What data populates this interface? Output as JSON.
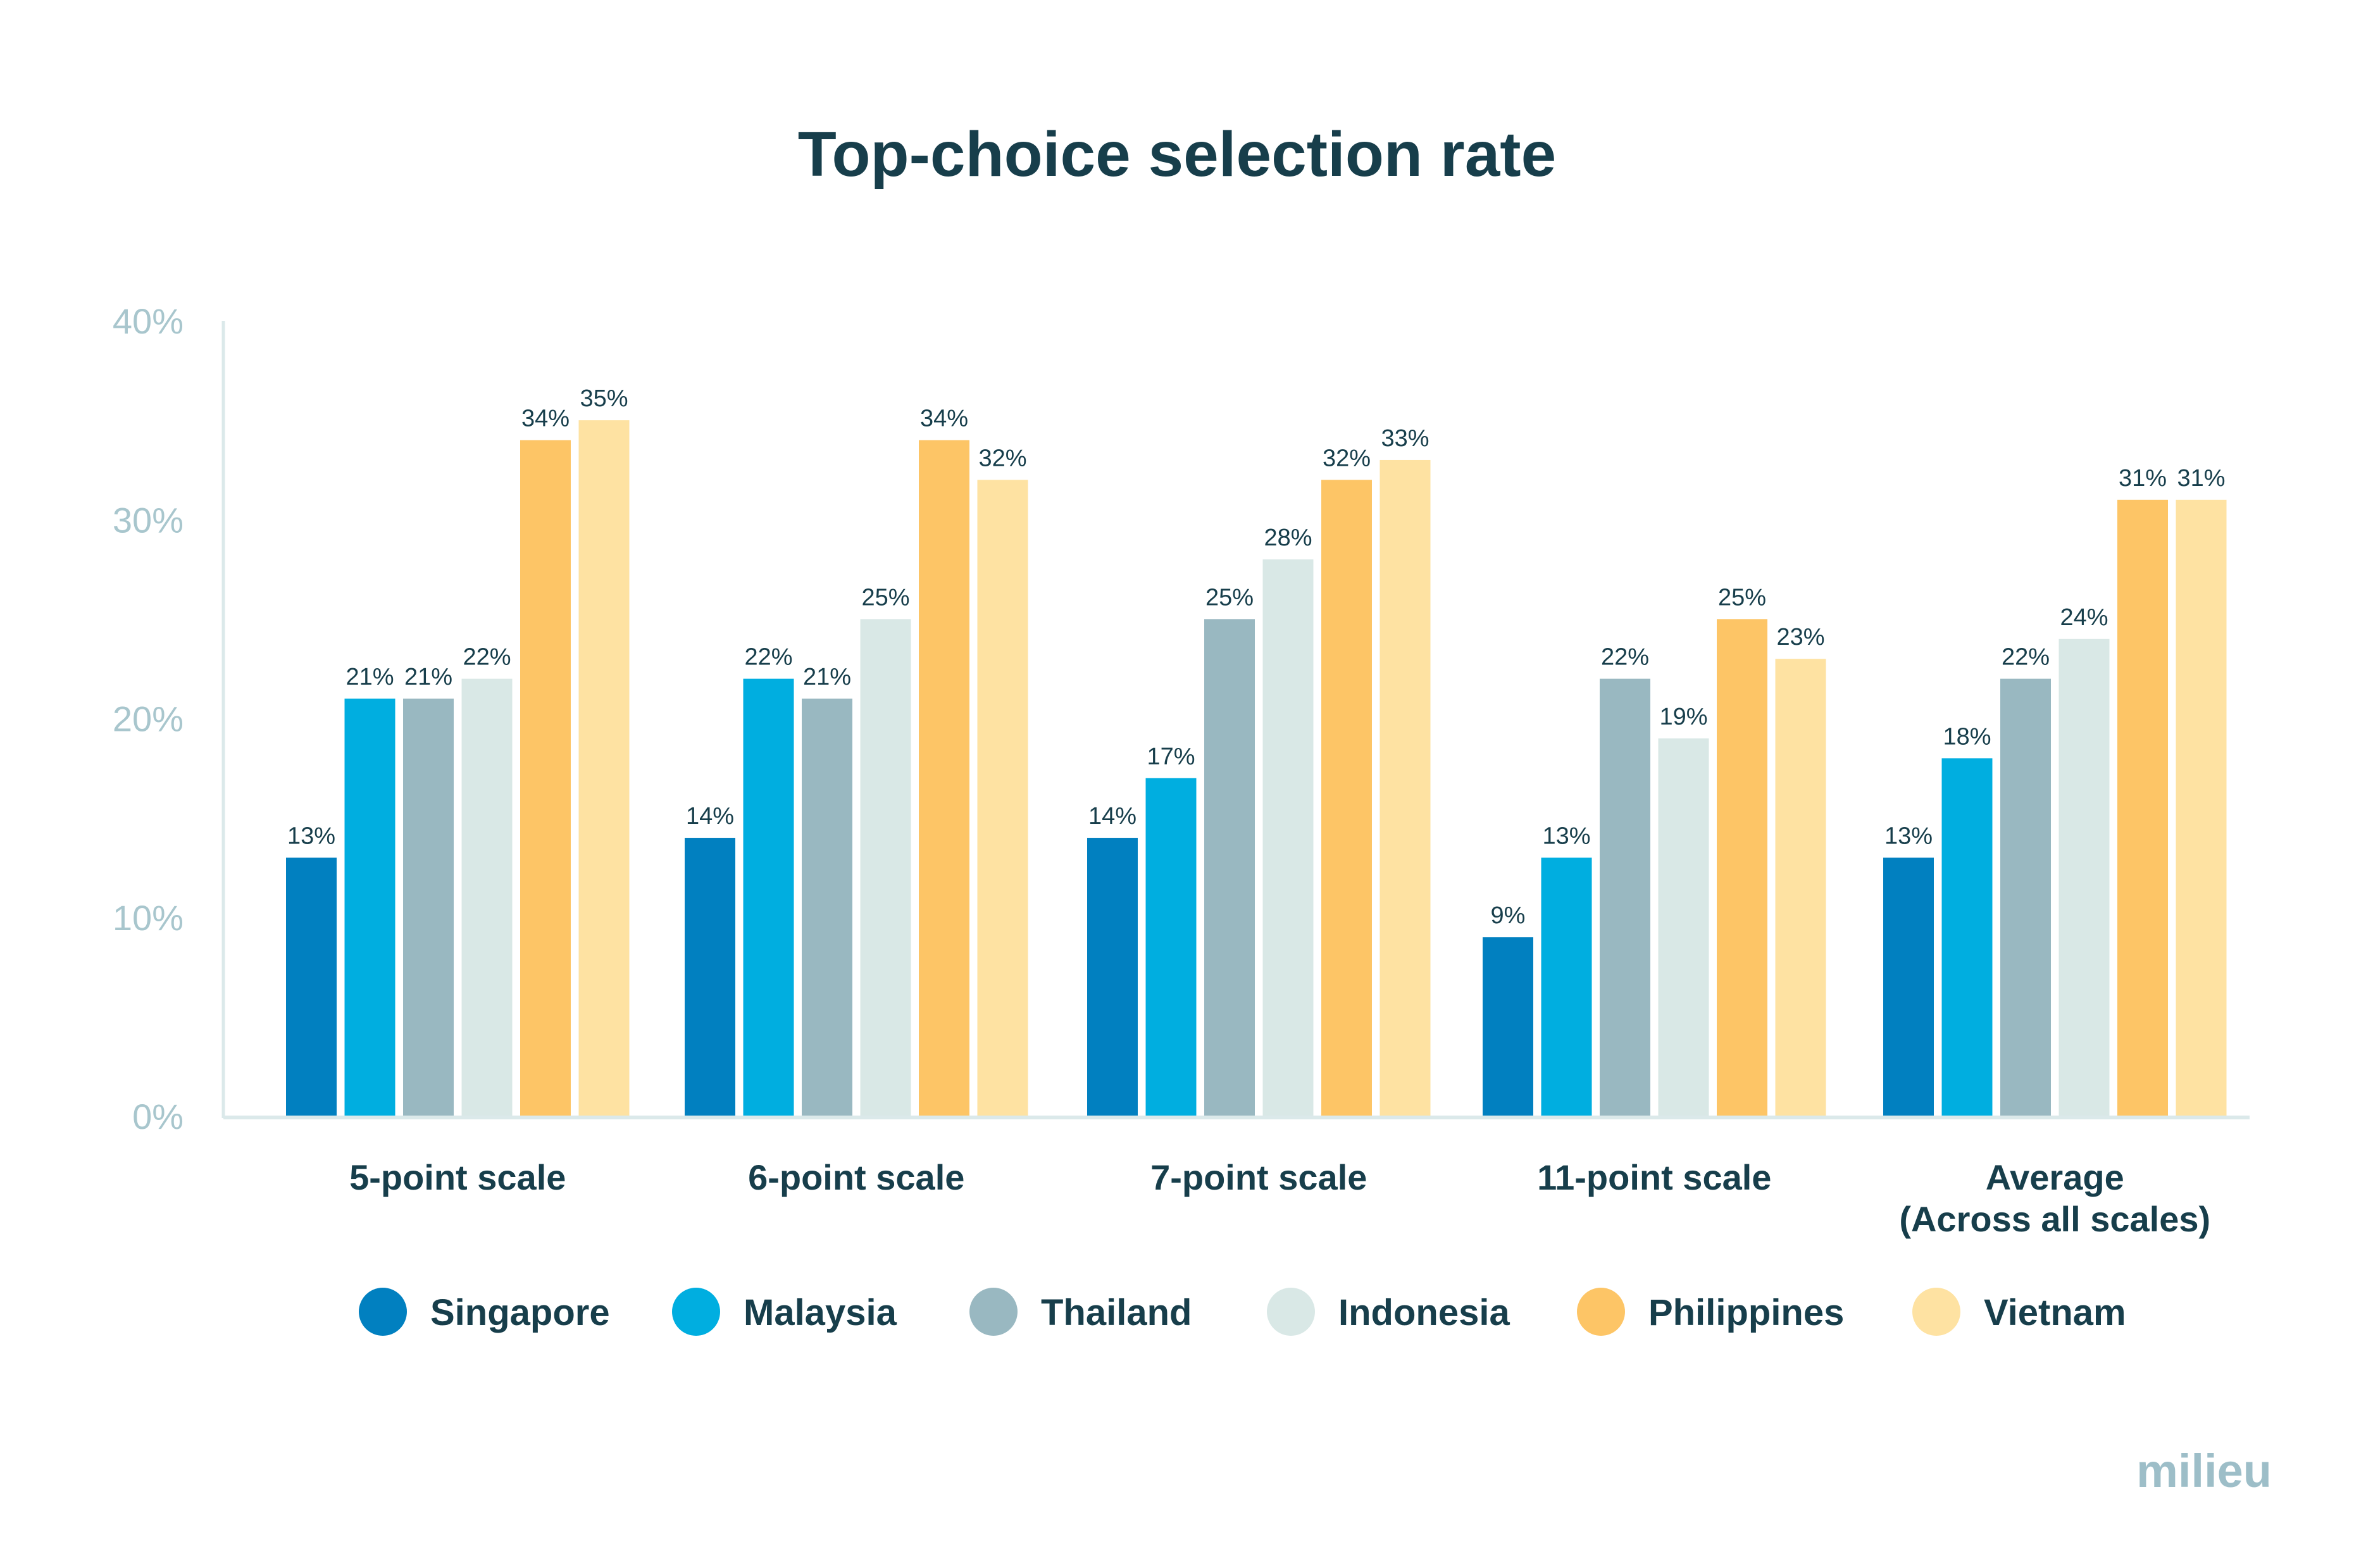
{
  "chart_data": {
    "type": "bar",
    "title": "Top-choice selection rate",
    "categories": [
      [
        "5-point scale"
      ],
      [
        "6-point scale"
      ],
      [
        "7-point scale"
      ],
      [
        "11-point scale"
      ],
      [
        "Average",
        "(Across all scales)"
      ]
    ],
    "series": [
      {
        "name": "Singapore",
        "color": "#0180c0",
        "values": [
          13,
          14,
          14,
          9,
          13
        ]
      },
      {
        "name": "Malaysia",
        "color": "#00aee0",
        "values": [
          21,
          22,
          17,
          13,
          18
        ]
      },
      {
        "name": "Thailand",
        "color": "#99b8c1",
        "values": [
          21,
          21,
          25,
          22,
          22
        ]
      },
      {
        "name": "Indonesia",
        "color": "#d9e8e6",
        "values": [
          22,
          25,
          28,
          19,
          24
        ]
      },
      {
        "name": "Philippines",
        "color": "#fdc566",
        "values": [
          34,
          34,
          32,
          25,
          31
        ]
      },
      {
        "name": "Vietnam",
        "color": "#fee2a2",
        "values": [
          35,
          32,
          33,
          23,
          31
        ]
      }
    ],
    "value_suffix": "%",
    "ylim": [
      0,
      40
    ],
    "yticks": [
      "0%",
      "10%",
      "20%",
      "30%",
      "40%"
    ],
    "grid": false,
    "legend_position": "bottom"
  },
  "brand": {
    "name": "milieu"
  }
}
